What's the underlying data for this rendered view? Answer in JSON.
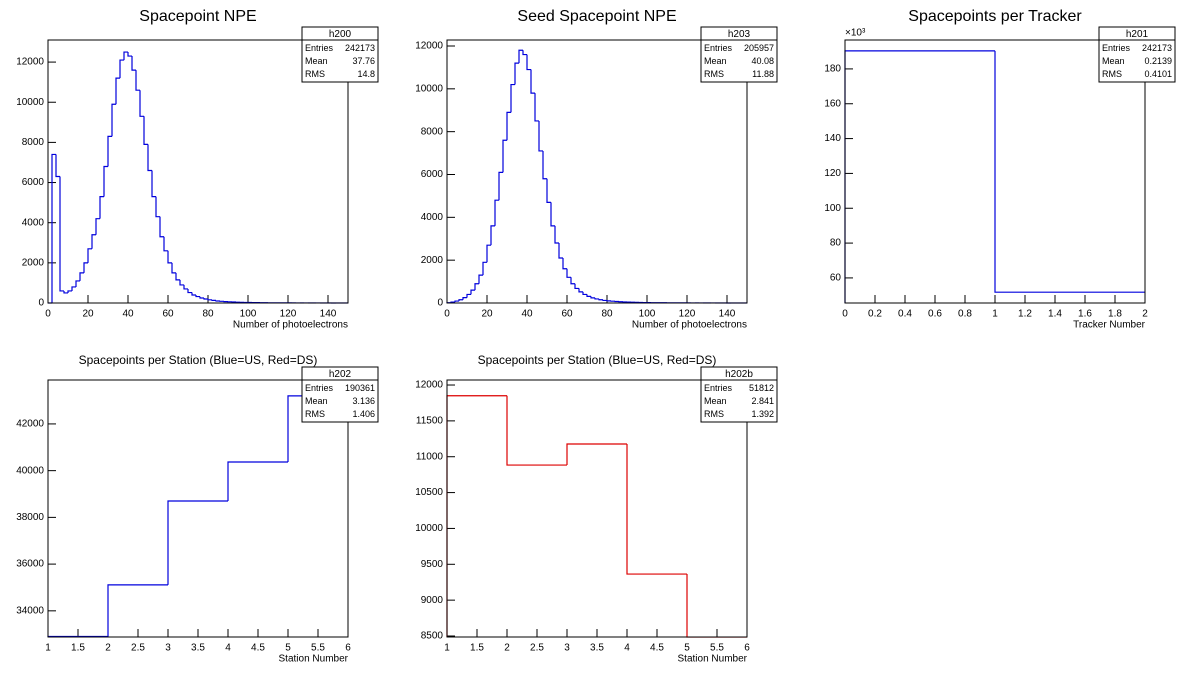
{
  "chart_data": [
    {
      "type": "histogram",
      "title": "Spacepoint NPE",
      "x_label": "Number of photoelectrons",
      "color": "#0000dd",
      "bins": [
        0,
        2,
        4,
        6,
        8,
        10,
        12,
        14,
        16,
        18,
        20,
        22,
        24,
        26,
        28,
        30,
        32,
        34,
        36,
        38,
        40,
        42,
        44,
        46,
        48,
        50,
        52,
        54,
        56,
        58,
        60,
        62,
        64,
        66,
        68,
        70,
        72,
        74,
        76,
        78,
        80,
        82,
        84,
        86,
        88,
        90,
        92,
        94,
        96,
        98,
        100,
        102,
        104,
        106,
        108,
        110,
        112,
        114,
        116,
        118,
        120,
        122,
        124,
        126,
        128,
        130,
        132,
        134,
        136,
        138,
        140,
        142,
        144,
        146,
        148,
        150
      ],
      "values": [
        0,
        7400,
        6300,
        600,
        500,
        600,
        800,
        1100,
        1500,
        2000,
        2700,
        3400,
        4200,
        5300,
        6800,
        8300,
        9900,
        11200,
        12100,
        12500,
        12300,
        11600,
        10600,
        9300,
        7900,
        6600,
        5300,
        4300,
        3300,
        2600,
        2000,
        1500,
        1150,
        900,
        700,
        520,
        400,
        320,
        250,
        200,
        160,
        130,
        100,
        85,
        70,
        58,
        48,
        40,
        33,
        28,
        24,
        20,
        17,
        14,
        12,
        10,
        9,
        8,
        7,
        6,
        5,
        5,
        4,
        4,
        3,
        3,
        3,
        2,
        2,
        2,
        2,
        1,
        1,
        1,
        1
      ],
      "xlim": [
        0,
        150
      ],
      "xticks": [
        0,
        20,
        40,
        60,
        80,
        100,
        120,
        140
      ],
      "ylim": [
        0,
        13100
      ],
      "yticks": [
        0,
        2000,
        4000,
        6000,
        8000,
        10000,
        12000
      ],
      "stats": {
        "name": "h200",
        "rows": [
          {
            "label": "Entries",
            "value": 242173
          },
          {
            "label": "Mean",
            "value": 37.76
          },
          {
            "label": "RMS",
            "value": 14.8
          }
        ]
      }
    },
    {
      "type": "histogram",
      "title": "Seed Spacepoint NPE",
      "x_label": "Number of photoelectrons",
      "color": "#0000dd",
      "bins": [
        0,
        2,
        4,
        6,
        8,
        10,
        12,
        14,
        16,
        18,
        20,
        22,
        24,
        26,
        28,
        30,
        32,
        34,
        36,
        38,
        40,
        42,
        44,
        46,
        48,
        50,
        52,
        54,
        56,
        58,
        60,
        62,
        64,
        66,
        68,
        70,
        72,
        74,
        76,
        78,
        80,
        82,
        84,
        86,
        88,
        90,
        92,
        94,
        96,
        98,
        100,
        102,
        104,
        106,
        108,
        110,
        112,
        114,
        116,
        118,
        120,
        122,
        124,
        126,
        128,
        130,
        132,
        134,
        136,
        138,
        140,
        142,
        144,
        146,
        148,
        150
      ],
      "values": [
        10,
        40,
        90,
        150,
        250,
        400,
        600,
        900,
        1300,
        1900,
        2700,
        3600,
        4800,
        6100,
        7600,
        8900,
        10200,
        11200,
        11800,
        11600,
        10900,
        9800,
        8500,
        7100,
        5800,
        4700,
        3600,
        2800,
        2100,
        1600,
        1200,
        900,
        680,
        520,
        400,
        310,
        240,
        190,
        150,
        120,
        100,
        85,
        70,
        60,
        50,
        42,
        36,
        30,
        25,
        21,
        18,
        15,
        13,
        11,
        10,
        9,
        8,
        7,
        6,
        5,
        5,
        4,
        4,
        3,
        3,
        3,
        2,
        2,
        2,
        2,
        1,
        1,
        1,
        1,
        1
      ],
      "xlim": [
        0,
        150
      ],
      "xticks": [
        0,
        20,
        40,
        60,
        80,
        100,
        120,
        140
      ],
      "ylim": [
        0,
        12280
      ],
      "yticks": [
        0,
        2000,
        4000,
        6000,
        8000,
        10000,
        12000
      ],
      "stats": {
        "name": "h203",
        "rows": [
          {
            "label": "Entries",
            "value": 205957
          },
          {
            "label": "Mean",
            "value": 40.08
          },
          {
            "label": "RMS",
            "value": 11.88
          }
        ]
      }
    },
    {
      "type": "histogram",
      "title": "Spacepoints per Tracker",
      "x_label": "Tracker Number",
      "color": "#0000dd",
      "y_multiplier": "×10³",
      "bins": [
        0,
        1,
        2
      ],
      "values": [
        190.361,
        51.812
      ],
      "xlim": [
        0,
        2
      ],
      "xticks": [
        0,
        0.2,
        0.4,
        0.6,
        0.8,
        1,
        1.2,
        1.4,
        1.6,
        1.8,
        2
      ],
      "ylim": [
        45.6,
        196.6
      ],
      "yticks": [
        60,
        80,
        100,
        120,
        140,
        160,
        180
      ],
      "stats": {
        "name": "h201",
        "rows": [
          {
            "label": "Entries",
            "value": 242173
          },
          {
            "label": "Mean",
            "value": 0.2139
          },
          {
            "label": "RMS",
            "value": 0.4101
          }
        ]
      }
    },
    {
      "type": "histogram",
      "title": "Spacepoints per Station (Blue=US, Red=DS)",
      "x_label": "Station Number",
      "color": "#0000dd",
      "bins": [
        1,
        2,
        3,
        4,
        5,
        6
      ],
      "values": [
        32900,
        35110,
        38700,
        40370,
        43200
      ],
      "xlim": [
        1,
        6
      ],
      "xticks": [
        1,
        1.5,
        2,
        2.5,
        3,
        3.5,
        4,
        4.5,
        5,
        5.5,
        6
      ],
      "ylim": [
        32880,
        43880
      ],
      "yticks": [
        34000,
        36000,
        38000,
        40000,
        42000
      ],
      "stats": {
        "name": "h202",
        "rows": [
          {
            "label": "Entries",
            "value": 190361
          },
          {
            "label": "Mean",
            "value": 3.136
          },
          {
            "label": "RMS",
            "value": 1.406
          }
        ]
      }
    },
    {
      "type": "histogram",
      "title": "Spacepoints per Station (Blue=US, Red=DS)",
      "x_label": "Station Number",
      "color": "#dd0000",
      "bins": [
        1,
        2,
        3,
        4,
        5,
        6
      ],
      "values": [
        11850,
        10884,
        11177,
        9364,
        8485
      ],
      "xlim": [
        1,
        6
      ],
      "xticks": [
        1,
        1.5,
        2,
        2.5,
        3,
        3.5,
        4,
        4.5,
        5,
        5.5,
        6
      ],
      "ylim": [
        8486,
        12070
      ],
      "yticks": [
        8500,
        9000,
        9500,
        10000,
        10500,
        11000,
        11500,
        12000
      ],
      "stats": {
        "name": "h202b",
        "rows": [
          {
            "label": "Entries",
            "value": 51812
          },
          {
            "label": "Mean",
            "value": 2.841
          },
          {
            "label": "RMS",
            "value": 1.392
          }
        ]
      }
    }
  ]
}
